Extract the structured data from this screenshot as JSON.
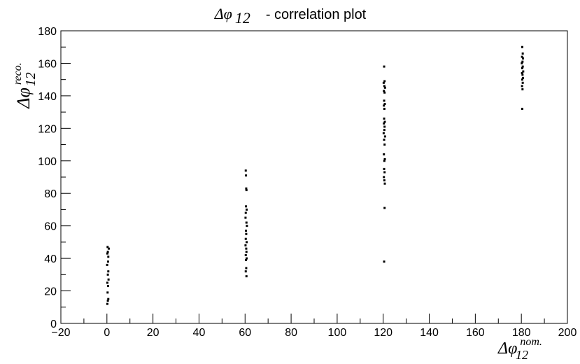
{
  "chart_data": {
    "type": "scatter",
    "title": {
      "symbol": "Δφ",
      "sub": "12",
      "text": "- correlation plot"
    },
    "xlabel": {
      "symbol": "Δφ",
      "sub": "12",
      "sup": "nom."
    },
    "ylabel": {
      "symbol": "Δφ",
      "sub": "12",
      "sup": "reco."
    },
    "xlim": [
      -20,
      200
    ],
    "ylim": [
      0,
      180
    ],
    "xticks": [
      -20,
      0,
      20,
      40,
      60,
      80,
      100,
      120,
      140,
      160,
      180,
      200
    ],
    "yticks": [
      0,
      20,
      40,
      60,
      80,
      100,
      120,
      140,
      160,
      180
    ],
    "x_tick_labels": [
      "−20",
      "0",
      "20",
      "40",
      "60",
      "80",
      "100",
      "120",
      "140",
      "160",
      "180",
      "200"
    ],
    "y_tick_labels": [
      "0",
      "20",
      "40",
      "60",
      "80",
      "100",
      "120",
      "140",
      "160",
      "180"
    ],
    "grid": false,
    "legend": "none",
    "marker_color": "#000000",
    "points": [
      {
        "x": 0.3,
        "y": 47
      },
      {
        "x": 0.8,
        "y": 46
      },
      {
        "x": 0.4,
        "y": 44
      },
      {
        "x": 0.2,
        "y": 43
      },
      {
        "x": 0.6,
        "y": 41
      },
      {
        "x": 0.5,
        "y": 38
      },
      {
        "x": 0.1,
        "y": 36
      },
      {
        "x": 0.6,
        "y": 32
      },
      {
        "x": 0.4,
        "y": 30
      },
      {
        "x": 0.7,
        "y": 27
      },
      {
        "x": 0.2,
        "y": 25
      },
      {
        "x": 0.5,
        "y": 23
      },
      {
        "x": 0.3,
        "y": 19
      },
      {
        "x": 0.6,
        "y": 15
      },
      {
        "x": 0.4,
        "y": 14
      },
      {
        "x": 0.2,
        "y": 12
      },
      {
        "x": 60.3,
        "y": 94
      },
      {
        "x": 60.4,
        "y": 91
      },
      {
        "x": 60.5,
        "y": 83
      },
      {
        "x": 60.6,
        "y": 82
      },
      {
        "x": 60.4,
        "y": 72
      },
      {
        "x": 60.7,
        "y": 70
      },
      {
        "x": 60.3,
        "y": 68
      },
      {
        "x": 60.2,
        "y": 65
      },
      {
        "x": 60.6,
        "y": 62
      },
      {
        "x": 60.8,
        "y": 60
      },
      {
        "x": 60.4,
        "y": 57
      },
      {
        "x": 60.5,
        "y": 55
      },
      {
        "x": 60.3,
        "y": 52
      },
      {
        "x": 60.7,
        "y": 50
      },
      {
        "x": 60.2,
        "y": 48
      },
      {
        "x": 60.5,
        "y": 46
      },
      {
        "x": 60.6,
        "y": 44
      },
      {
        "x": 60.3,
        "y": 42
      },
      {
        "x": 60.7,
        "y": 40
      },
      {
        "x": 60.4,
        "y": 39
      },
      {
        "x": 60.5,
        "y": 34
      },
      {
        "x": 60.3,
        "y": 32
      },
      {
        "x": 60.6,
        "y": 29
      },
      {
        "x": 120.4,
        "y": 158
      },
      {
        "x": 120.6,
        "y": 149
      },
      {
        "x": 120.2,
        "y": 148
      },
      {
        "x": 120.5,
        "y": 146
      },
      {
        "x": 120.8,
        "y": 145
      },
      {
        "x": 120.3,
        "y": 143
      },
      {
        "x": 120.6,
        "y": 142
      },
      {
        "x": 120.4,
        "y": 137
      },
      {
        "x": 120.7,
        "y": 135
      },
      {
        "x": 120.3,
        "y": 134
      },
      {
        "x": 120.5,
        "y": 132
      },
      {
        "x": 120.4,
        "y": 126
      },
      {
        "x": 120.7,
        "y": 124
      },
      {
        "x": 120.3,
        "y": 123
      },
      {
        "x": 120.6,
        "y": 121
      },
      {
        "x": 120.5,
        "y": 119
      },
      {
        "x": 120.2,
        "y": 117
      },
      {
        "x": 120.8,
        "y": 115
      },
      {
        "x": 120.4,
        "y": 113
      },
      {
        "x": 120.6,
        "y": 110
      },
      {
        "x": 120.3,
        "y": 104
      },
      {
        "x": 120.7,
        "y": 101
      },
      {
        "x": 120.5,
        "y": 100
      },
      {
        "x": 120.4,
        "y": 95
      },
      {
        "x": 120.6,
        "y": 93
      },
      {
        "x": 120.3,
        "y": 90
      },
      {
        "x": 120.5,
        "y": 88
      },
      {
        "x": 120.7,
        "y": 86
      },
      {
        "x": 120.6,
        "y": 71
      },
      {
        "x": 120.4,
        "y": 38
      },
      {
        "x": 180.4,
        "y": 170
      },
      {
        "x": 180.6,
        "y": 166
      },
      {
        "x": 180.3,
        "y": 164
      },
      {
        "x": 180.7,
        "y": 163
      },
      {
        "x": 180.5,
        "y": 161
      },
      {
        "x": 180.2,
        "y": 160
      },
      {
        "x": 180.6,
        "y": 158
      },
      {
        "x": 180.4,
        "y": 157
      },
      {
        "x": 180.8,
        "y": 155
      },
      {
        "x": 180.3,
        "y": 154
      },
      {
        "x": 180.5,
        "y": 153
      },
      {
        "x": 180.7,
        "y": 151
      },
      {
        "x": 180.4,
        "y": 150
      },
      {
        "x": 180.6,
        "y": 148
      },
      {
        "x": 180.3,
        "y": 146
      },
      {
        "x": 180.5,
        "y": 144
      },
      {
        "x": 180.4,
        "y": 132
      }
    ]
  }
}
